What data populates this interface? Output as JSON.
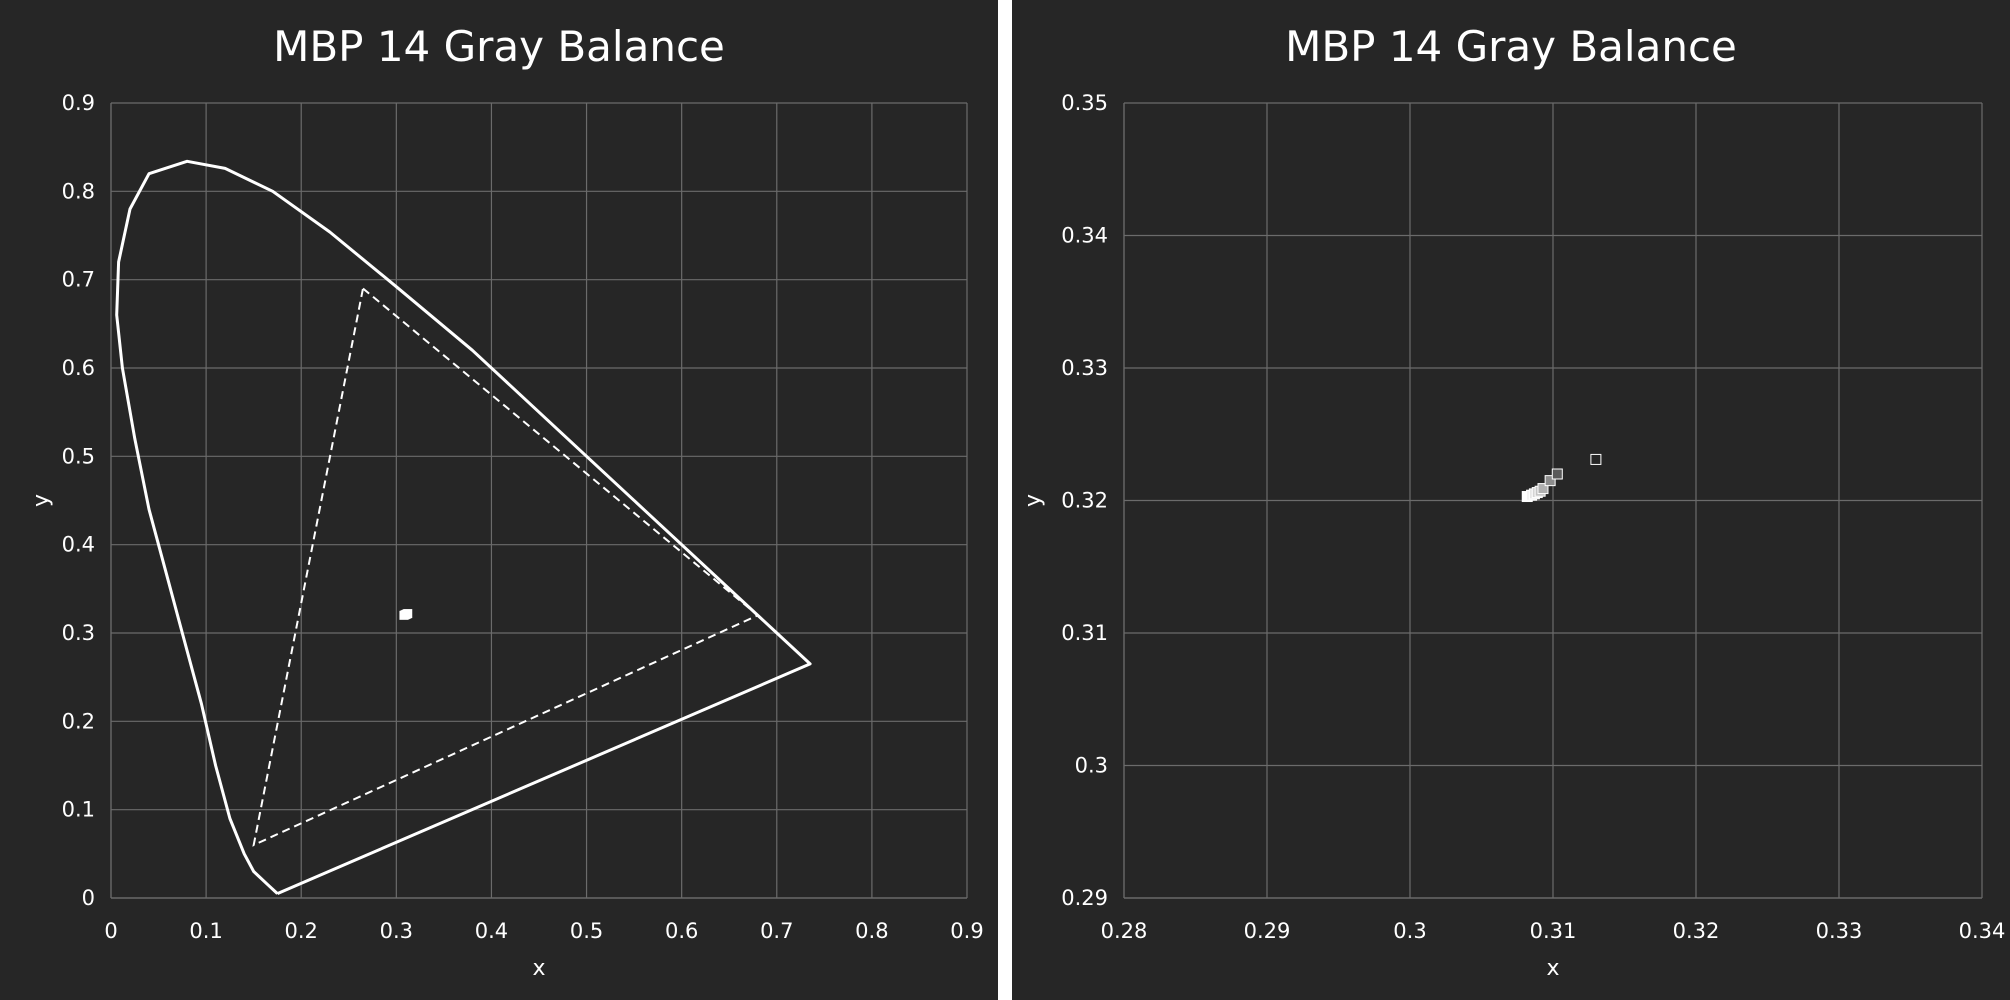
{
  "chart_data": [
    {
      "type": "scatter",
      "title": "MBP 14 Gray Balance",
      "xlabel": "x",
      "ylabel": "y",
      "xlim": [
        0,
        0.9
      ],
      "ylim": [
        0,
        0.9
      ],
      "x_ticks": [
        "0",
        "0.1",
        "0.2",
        "0.3",
        "0.4",
        "0.5",
        "0.6",
        "0.7",
        "0.8",
        "0.9"
      ],
      "y_ticks": [
        "0",
        "0.1",
        "0.2",
        "0.3",
        "0.4",
        "0.5",
        "0.6",
        "0.7",
        "0.8",
        "0.9"
      ],
      "grid": true,
      "line_color": "#ffffff",
      "spectral_locus": [
        [
          0.175,
          0.005
        ],
        [
          0.165,
          0.015
        ],
        [
          0.15,
          0.03
        ],
        [
          0.14,
          0.05
        ],
        [
          0.125,
          0.09
        ],
        [
          0.11,
          0.15
        ],
        [
          0.095,
          0.22
        ],
        [
          0.075,
          0.3
        ],
        [
          0.055,
          0.38
        ],
        [
          0.04,
          0.44
        ],
        [
          0.025,
          0.52
        ],
        [
          0.012,
          0.6
        ],
        [
          0.006,
          0.66
        ],
        [
          0.008,
          0.72
        ],
        [
          0.02,
          0.78
        ],
        [
          0.04,
          0.82
        ],
        [
          0.08,
          0.834
        ],
        [
          0.12,
          0.826
        ],
        [
          0.17,
          0.8
        ],
        [
          0.23,
          0.754
        ],
        [
          0.3,
          0.692
        ],
        [
          0.38,
          0.62
        ],
        [
          0.47,
          0.53
        ],
        [
          0.56,
          0.44
        ],
        [
          0.64,
          0.36
        ],
        [
          0.7,
          0.3
        ],
        [
          0.735,
          0.265
        ],
        [
          0.175,
          0.005
        ]
      ],
      "display_gamut": [
        [
          0.265,
          0.69
        ],
        [
          0.68,
          0.32
        ],
        [
          0.15,
          0.06
        ],
        [
          0.265,
          0.69
        ]
      ],
      "gray_points": {
        "x": [
          0.308,
          0.309,
          0.31,
          0.311,
          0.312
        ],
        "y": [
          0.32,
          0.3205,
          0.321,
          0.3215,
          0.322
        ]
      }
    },
    {
      "type": "scatter",
      "title": "MBP 14 Gray Balance",
      "xlabel": "x",
      "ylabel": "y",
      "xlim": [
        0.28,
        0.34
      ],
      "ylim": [
        0.29,
        0.35
      ],
      "x_ticks": [
        "0.28",
        "0.29",
        "0.3",
        "0.31",
        "0.32",
        "0.33",
        "0.34"
      ],
      "y_ticks": [
        "0.29",
        "0.3",
        "0.31",
        "0.32",
        "0.33",
        "0.34",
        "0.35"
      ],
      "grid": true,
      "gray_points": {
        "x": [
          0.3082,
          0.3085,
          0.3087,
          0.3089,
          0.3091,
          0.3093,
          0.3098,
          0.3103,
          0.313
        ],
        "y": [
          0.3203,
          0.3204,
          0.3205,
          0.3206,
          0.3207,
          0.3209,
          0.3215,
          0.322,
          0.3231
        ],
        "colors": [
          "#ffffff",
          "#f2f2f2",
          "#e6e6e6",
          "#d4d4d4",
          "#c4c4c4",
          "#b0b0b0",
          "#8c8c8c",
          "#5a5a5a",
          "#262626"
        ]
      }
    }
  ]
}
